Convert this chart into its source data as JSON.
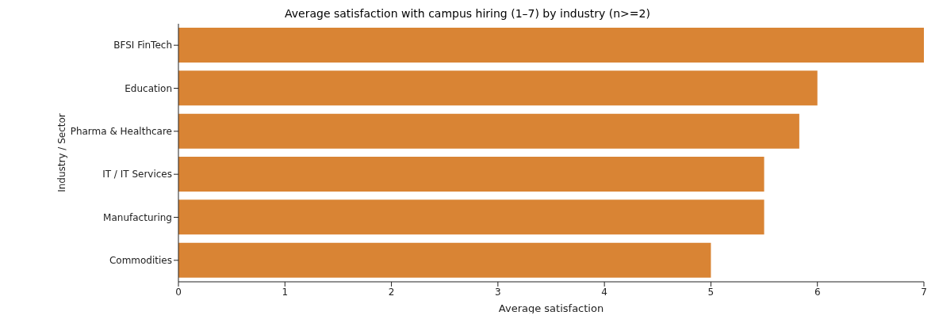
{
  "chart_data": {
    "type": "bar",
    "orientation": "horizontal",
    "title": "Average satisfaction with campus hiring (1–7) by industry (n>=2)",
    "xlabel": "Average satisfaction",
    "ylabel": "Industry / Sector",
    "categories": [
      "BFSI FinTech",
      "Education",
      "Pharma & Healthcare",
      "IT / IT Services",
      "Manufacturing",
      "Commodities"
    ],
    "values": [
      7,
      6,
      5.83,
      5.5,
      5.5,
      5
    ],
    "color": "#d98434",
    "xlim": [
      0,
      7
    ],
    "xticks": [
      0,
      1,
      2,
      3,
      4,
      5,
      6,
      7
    ]
  }
}
